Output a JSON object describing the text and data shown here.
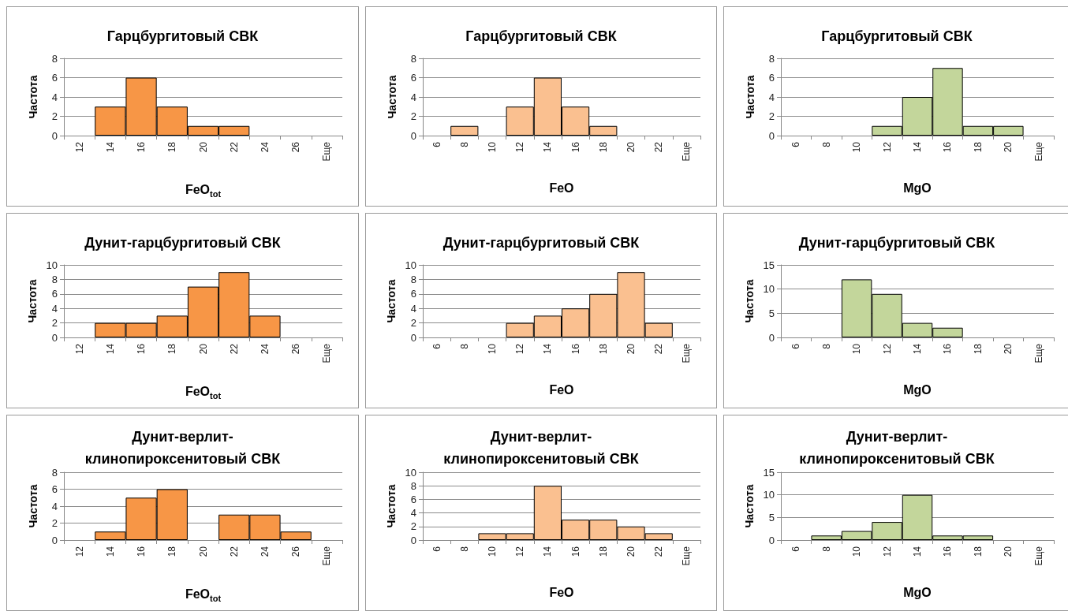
{
  "chart_data": [
    {
      "type": "bar",
      "title": "Гарцбургитовый СВК",
      "xlabel": "FeO$_{tot}$",
      "ylabel": "Частота",
      "categories": [
        "12",
        "14",
        "16",
        "18",
        "20",
        "22",
        "24",
        "26",
        "Еще"
      ],
      "values": [
        0,
        3,
        6,
        3,
        1,
        1,
        0,
        0,
        0
      ],
      "color": "#f79646",
      "ylim": [
        0,
        8
      ],
      "yticks": [
        0,
        2,
        4,
        6,
        8
      ],
      "grid": "y"
    },
    {
      "type": "bar",
      "title": "Гарцбургитовый СВК",
      "xlabel": "FeO",
      "ylabel": "Частота",
      "categories": [
        "6",
        "8",
        "10",
        "12",
        "14",
        "16",
        "18",
        "20",
        "22",
        "Еще"
      ],
      "values": [
        0,
        1,
        0,
        3,
        6,
        3,
        1,
        0,
        0,
        0
      ],
      "color": "#fac090",
      "ylim": [
        0,
        8
      ],
      "yticks": [
        0,
        2,
        4,
        6,
        8
      ],
      "grid": "y"
    },
    {
      "type": "bar",
      "title": "Гарцбургитовый СВК",
      "xlabel": "MgO",
      "ylabel": "Частота",
      "categories": [
        "6",
        "8",
        "10",
        "12",
        "14",
        "16",
        "18",
        "20",
        "Еще"
      ],
      "values": [
        0,
        0,
        0,
        1,
        4,
        7,
        1,
        1,
        0
      ],
      "color": "#c3d69b",
      "ylim": [
        0,
        8
      ],
      "yticks": [
        0,
        2,
        4,
        6,
        8
      ],
      "grid": "y"
    },
    {
      "type": "bar",
      "title": "Дунит-гарцбургитовый СВК",
      "xlabel": "FeO$_{tot}$",
      "ylabel": "Частота",
      "categories": [
        "12",
        "14",
        "16",
        "18",
        "20",
        "22",
        "24",
        "26",
        "Еще"
      ],
      "values": [
        0,
        2,
        2,
        3,
        7,
        9,
        3,
        0,
        0
      ],
      "color": "#f79646",
      "ylim": [
        0,
        10
      ],
      "yticks": [
        0,
        2,
        4,
        6,
        8,
        10
      ],
      "grid": "y"
    },
    {
      "type": "bar",
      "title": "Дунит-гарцбургитовый СВК",
      "xlabel": "FeO",
      "ylabel": "Частота",
      "categories": [
        "6",
        "8",
        "10",
        "12",
        "14",
        "16",
        "18",
        "20",
        "22",
        "Еще"
      ],
      "values": [
        0,
        0,
        0,
        2,
        3,
        4,
        6,
        9,
        2,
        0
      ],
      "color": "#fac090",
      "ylim": [
        0,
        10
      ],
      "yticks": [
        0,
        2,
        4,
        6,
        8,
        10
      ],
      "grid": "y"
    },
    {
      "type": "bar",
      "title": "Дунит-гарцбургитовый СВК",
      "xlabel": "MgO",
      "ylabel": "Частота",
      "categories": [
        "6",
        "8",
        "10",
        "12",
        "14",
        "16",
        "18",
        "20",
        "Еще"
      ],
      "values": [
        0,
        0,
        12,
        9,
        3,
        2,
        0,
        0,
        0
      ],
      "color": "#c3d69b",
      "ylim": [
        0,
        15
      ],
      "yticks": [
        0,
        5,
        10,
        15
      ],
      "grid": "y"
    },
    {
      "type": "bar",
      "title": "Дунит-верлит-клинопироксенитовый СВК",
      "xlabel": "FeO$_{tot}$",
      "ylabel": "Частота",
      "categories": [
        "12",
        "14",
        "16",
        "18",
        "20",
        "22",
        "24",
        "26",
        "Еще"
      ],
      "values": [
        0,
        1,
        5,
        6,
        0,
        3,
        3,
        1,
        0
      ],
      "color": "#f79646",
      "ylim": [
        0,
        8
      ],
      "yticks": [
        0,
        2,
        4,
        6,
        8
      ],
      "grid": "y"
    },
    {
      "type": "bar",
      "title": "Дунит-верлит-клинопироксенитовый СВК",
      "xlabel": "FeO",
      "ylabel": "Частота",
      "categories": [
        "6",
        "8",
        "10",
        "12",
        "14",
        "16",
        "18",
        "20",
        "22",
        "Еще"
      ],
      "values": [
        0,
        0,
        1,
        1,
        8,
        3,
        3,
        2,
        1,
        0
      ],
      "color": "#fac090",
      "ylim": [
        0,
        10
      ],
      "yticks": [
        0,
        2,
        4,
        6,
        8,
        10
      ],
      "grid": "y"
    },
    {
      "type": "bar",
      "title": "Дунит-верлит-клинопироксенитовый СВК",
      "xlabel": "MgO",
      "ylabel": "Частота",
      "categories": [
        "6",
        "8",
        "10",
        "12",
        "14",
        "16",
        "18",
        "20",
        "Еще"
      ],
      "values": [
        0,
        1,
        2,
        4,
        10,
        1,
        1,
        0,
        0
      ],
      "color": "#c3d69b",
      "ylim": [
        0,
        15
      ],
      "yticks": [
        0,
        5,
        10,
        15
      ],
      "grid": "y"
    }
  ]
}
